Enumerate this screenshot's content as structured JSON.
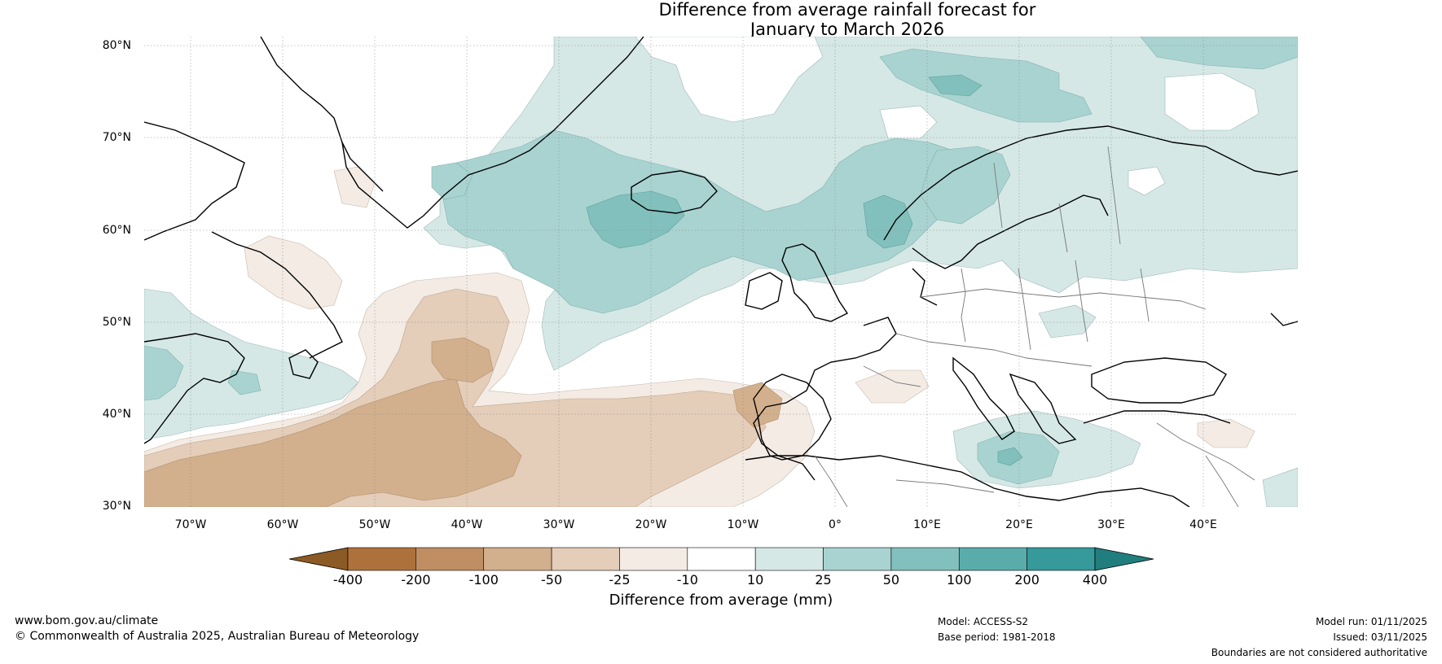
{
  "title": {
    "line1": "Difference from average rainfall forecast for",
    "line2": "January to March 2026"
  },
  "map": {
    "lat_labels": [
      "80°N",
      "70°N",
      "60°N",
      "50°N",
      "40°N",
      "30°N"
    ],
    "lon_labels": [
      "70°W",
      "60°W",
      "50°W",
      "40°W",
      "30°W",
      "20°W",
      "10°W",
      "0°",
      "10°E",
      "20°E",
      "30°E",
      "40°E"
    ],
    "extent": {
      "lon_min": -75,
      "lon_max": 50,
      "lat_min": 30,
      "lat_max": 81
    }
  },
  "colorbar": {
    "tick_labels": [
      "-400",
      "-200",
      "-100",
      "-50",
      "-25",
      "-10",
      "10",
      "25",
      "50",
      "100",
      "200",
      "400"
    ],
    "colors": [
      "#8c5a24",
      "#ad723c",
      "#c08e63",
      "#d3b08d",
      "#e4cdb9",
      "#f3ebe4",
      "#ffffff",
      "#d5e8e6",
      "#a9d3d1",
      "#82c0bd",
      "#5aacaa",
      "#36999a",
      "#217e7e"
    ],
    "label": "Difference from average (mm)"
  },
  "footer": {
    "url": "www.bom.gov.au/climate",
    "copyright": "© Commonwealth of Australia 2025, Australian Bureau of Meteorology",
    "model": "Model: ACCESS-S2",
    "base_period": "Base period: 1981-2018",
    "model_run": "Model run: 01/11/2025",
    "issued": "Issued: 03/11/2025",
    "disclaimer": "Boundaries are not considered authoritative"
  }
}
